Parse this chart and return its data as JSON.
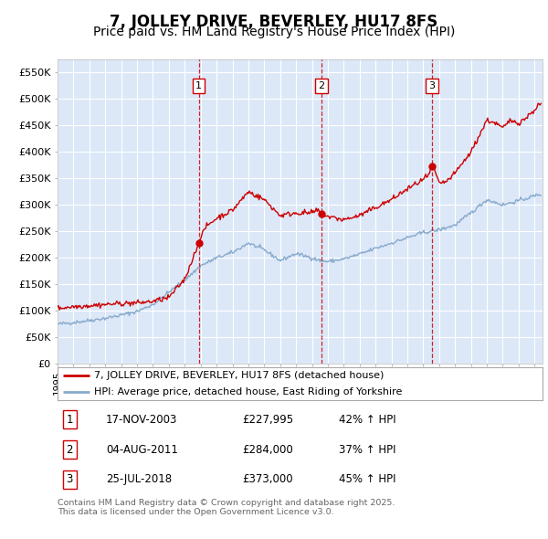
{
  "title": "7, JOLLEY DRIVE, BEVERLEY, HU17 8FS",
  "subtitle": "Price paid vs. HM Land Registry's House Price Index (HPI)",
  "ylabel_ticks": [
    "£0",
    "£50K",
    "£100K",
    "£150K",
    "£200K",
    "£250K",
    "£300K",
    "£350K",
    "£400K",
    "£450K",
    "£500K",
    "£550K"
  ],
  "ylim": [
    0,
    575000
  ],
  "xlim_start": 1995.0,
  "xlim_end": 2025.5,
  "sale_dates": [
    2003.88,
    2011.58,
    2018.56
  ],
  "sale_labels": [
    "1",
    "2",
    "3"
  ],
  "sale_prices": [
    227995,
    284000,
    373000
  ],
  "sale_date_strs": [
    "17-NOV-2003",
    "04-AUG-2011",
    "25-JUL-2018"
  ],
  "sale_price_strs": [
    "£227,995",
    "£284,000",
    "£373,000"
  ],
  "sale_hpi_strs": [
    "42% ↑ HPI",
    "37% ↑ HPI",
    "45% ↑ HPI"
  ],
  "line_color_red": "#cc0000",
  "line_color_blue": "#88aacc",
  "background_color": "#dce8f8",
  "legend_label_red": "7, JOLLEY DRIVE, BEVERLEY, HU17 8FS (detached house)",
  "legend_label_blue": "HPI: Average price, detached house, East Riding of Yorkshire",
  "footer_text": "Contains HM Land Registry data © Crown copyright and database right 2025.\nThis data is licensed under the Open Government Licence v3.0.",
  "title_fontsize": 12,
  "subtitle_fontsize": 10
}
